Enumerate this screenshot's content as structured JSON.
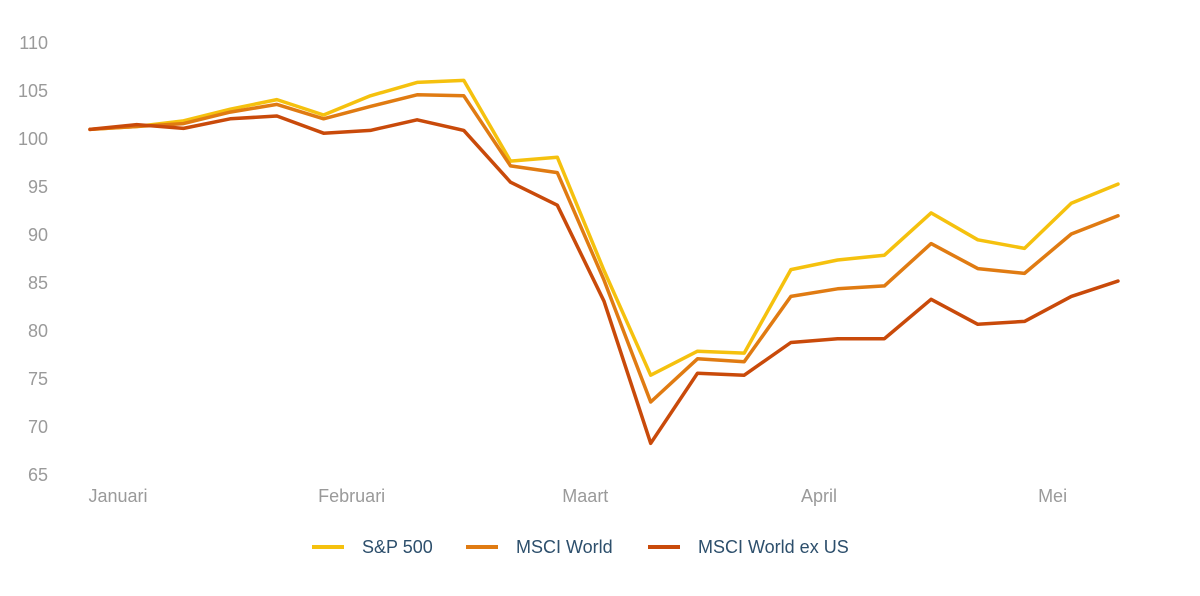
{
  "chart_data": {
    "type": "line",
    "title": "",
    "xlabel": "",
    "ylabel": "",
    "ylim": [
      65,
      110
    ],
    "y_ticks": [
      110,
      105,
      100,
      95,
      90,
      85,
      80,
      75,
      70,
      65
    ],
    "grid": false,
    "legend_position": "bottom-center",
    "x_tick_labels": [
      {
        "label": "Januari",
        "index": 0.6
      },
      {
        "label": "Februari",
        "index": 5.6
      },
      {
        "label": "Maart",
        "index": 10.6
      },
      {
        "label": "April",
        "index": 15.6
      },
      {
        "label": "Mei",
        "index": 20.6
      }
    ],
    "points_count": 23,
    "series": [
      {
        "name": "S&P 500",
        "color": "#f5c10e",
        "values": [
          101,
          101.3,
          101.9,
          103.1,
          104.1,
          102.5,
          104.5,
          105.9,
          106.1,
          97.7,
          98.1,
          86.3,
          75.4,
          77.9,
          77.7,
          86.4,
          87.4,
          87.9,
          92.3,
          89.5,
          88.6,
          93.3,
          95.3
        ]
      },
      {
        "name": "MSCI World",
        "color": "#e07b12",
        "values": [
          101,
          101.3,
          101.6,
          102.8,
          103.6,
          102.1,
          103.4,
          104.6,
          104.5,
          97.2,
          96.5,
          85.3,
          72.6,
          77.1,
          76.8,
          83.6,
          84.4,
          84.7,
          89.1,
          86.5,
          86,
          90.1,
          92
        ]
      },
      {
        "name": "MSCI World ex US",
        "color": "#c94a0a",
        "values": [
          101,
          101.5,
          101.1,
          102.1,
          102.4,
          100.6,
          100.9,
          102,
          100.9,
          95.5,
          93.1,
          83.1,
          68.3,
          75.6,
          75.4,
          78.8,
          79.2,
          79.2,
          83.3,
          80.7,
          81,
          83.6,
          85.2
        ]
      }
    ]
  }
}
